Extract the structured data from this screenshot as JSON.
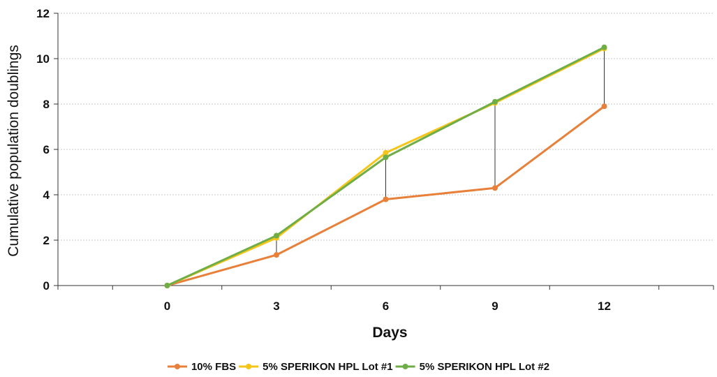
{
  "chart_data": {
    "type": "line",
    "title": "",
    "xlabel": "Days",
    "ylabel": "Cumulative population doublings",
    "x": [
      0,
      3,
      6,
      9,
      12
    ],
    "xlim": [
      -3,
      15
    ],
    "ylim": [
      0,
      12
    ],
    "yticks": [
      0,
      2,
      4,
      6,
      8,
      10,
      12
    ],
    "grid": "horizontal dotted",
    "legend": "bottom",
    "series": [
      {
        "name": "10% FBS",
        "color": "#E8803A",
        "values": [
          0,
          1.35,
          3.8,
          4.3,
          7.9
        ]
      },
      {
        "name": "5% SPERIKON HPL Lot #1",
        "color": "#F5C518",
        "values": [
          0,
          2.1,
          5.85,
          8.05,
          10.45
        ]
      },
      {
        "name": "5% SPERIKON HPL Lot #2",
        "color": "#6FAD47",
        "values": [
          0,
          2.2,
          5.65,
          8.1,
          10.5
        ]
      }
    ],
    "error_bars": "range lines between lowest and highest series at each x"
  }
}
